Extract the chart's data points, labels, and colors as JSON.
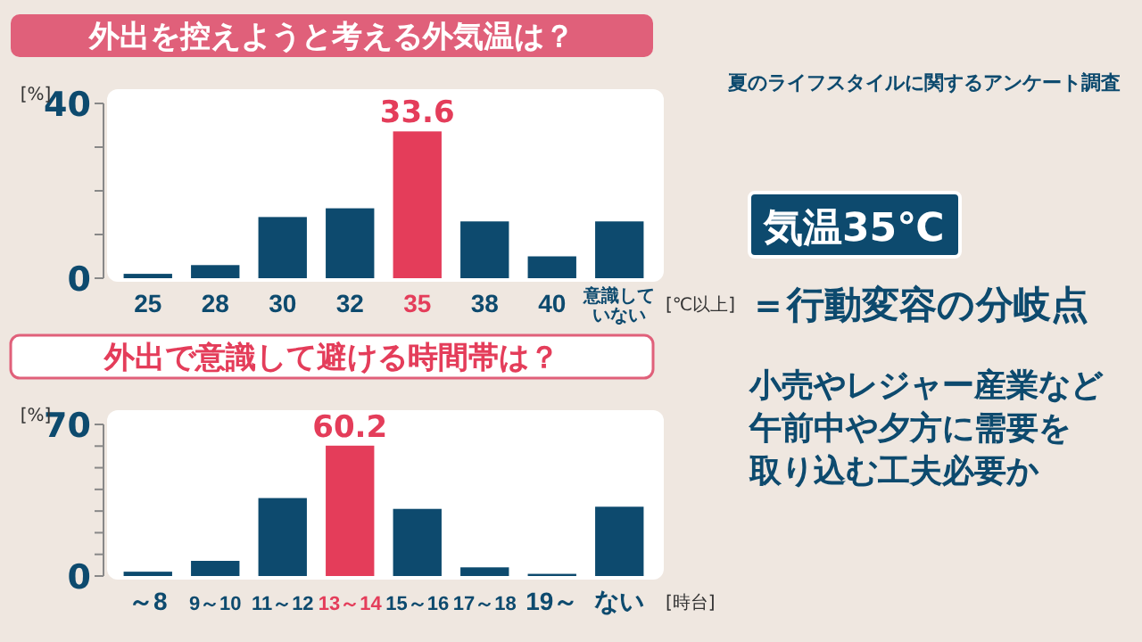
{
  "chart_data": [
    {
      "type": "bar",
      "title": "外出を控えようと考える外気温は？",
      "xlabel": "[℃以上]",
      "ylabel": "[%]",
      "categories": [
        "25",
        "28",
        "30",
        "32",
        "35",
        "38",
        "40",
        "意識していない"
      ],
      "values": [
        1,
        3,
        14,
        16,
        33.6,
        13,
        5,
        13
      ],
      "colors": [
        "#0d4a6e",
        "#0d4a6e",
        "#0d4a6e",
        "#0d4a6e",
        "#e43d5a",
        "#0d4a6e",
        "#0d4a6e",
        "#0d4a6e"
      ],
      "value_labels": [
        null,
        null,
        null,
        null,
        "33.6",
        null,
        null,
        null
      ],
      "ylim": [
        0,
        40
      ],
      "yticks": [
        0,
        {
          "value": 10,
          "label": null
        },
        {
          "value": 20,
          "label": null
        },
        {
          "value": 30,
          "label": null
        },
        40
      ]
    },
    {
      "type": "bar",
      "title": "外出で意識して避ける時間帯は？",
      "xlabel": "[時台]",
      "ylabel": "[%]",
      "categories": [
        "～8",
        "9～10",
        "11～12",
        "13～14",
        "15～16",
        "17～18",
        "19～",
        "ない"
      ],
      "values": [
        2,
        7,
        36,
        60.2,
        31,
        4,
        1,
        32
      ],
      "colors": [
        "#0d4a6e",
        "#0d4a6e",
        "#0d4a6e",
        "#e43d5a",
        "#0d4a6e",
        "#0d4a6e",
        "#0d4a6e",
        "#0d4a6e"
      ],
      "value_labels": [
        null,
        null,
        null,
        "60.2",
        null,
        null,
        null,
        null
      ],
      "ylim": [
        0,
        70
      ],
      "yticks": [
        0,
        {
          "value": 10,
          "label": null
        },
        {
          "value": 20,
          "label": null
        },
        {
          "value": 30,
          "label": null
        },
        {
          "value": 40,
          "label": null
        },
        {
          "value": 50,
          "label": null
        },
        {
          "value": 60,
          "label": null
        },
        70
      ]
    },
    {
      "type": "other",
      "title": "気温35℃",
      "subtitle": "＝行動変容の分岐点",
      "annotations": [
        "夏のライフスタイルに関するアンケート調査",
        "小売やレジャー産業など",
        "午前中や夕方に需要を",
        "取り込む工夫必要か"
      ]
    }
  ]
}
